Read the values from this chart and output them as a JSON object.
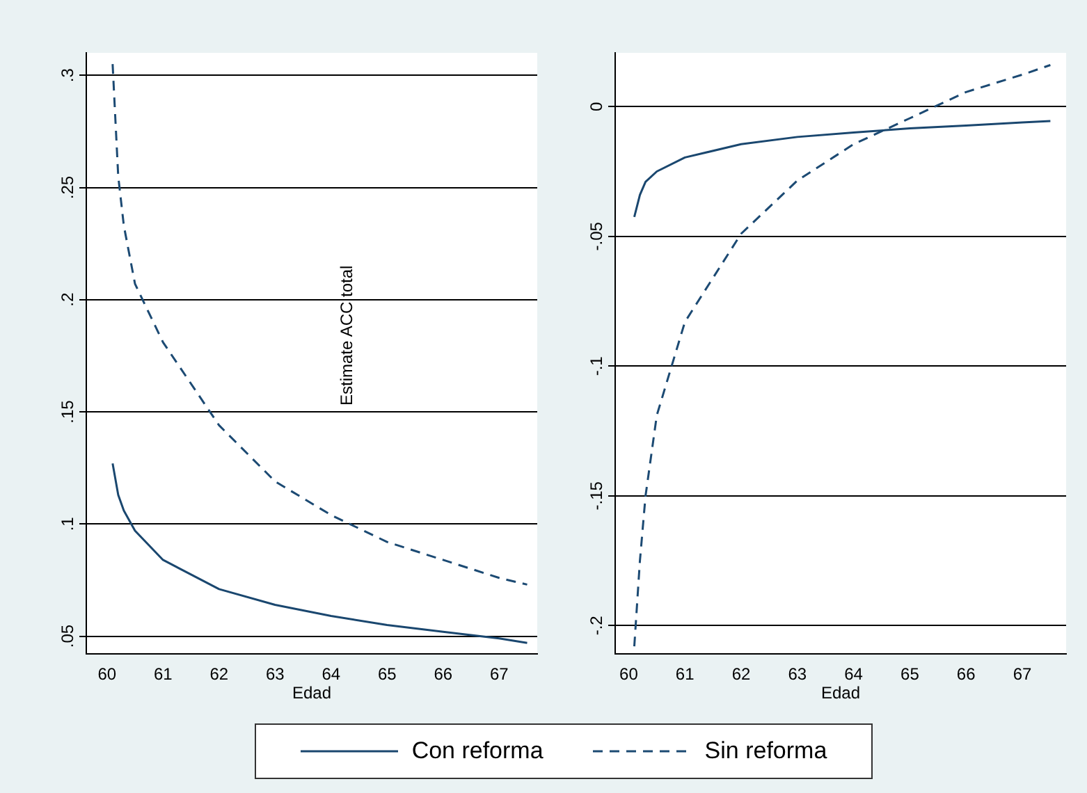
{
  "chart_data": [
    {
      "type": "line",
      "xlabel": "Edad",
      "x": [
        60.1,
        60.2,
        60.3,
        60.5,
        61,
        62,
        63,
        64,
        65,
        66,
        67,
        67.5
      ],
      "series": [
        {
          "name": "Con reforma",
          "color": "#1a476f",
          "line_style": "solid",
          "values": [
            0.127,
            0.113,
            0.106,
            0.097,
            0.084,
            0.071,
            0.064,
            0.059,
            0.055,
            0.052,
            0.049,
            0.047
          ]
        },
        {
          "name": "Sin reforma",
          "color": "#1c4a73",
          "line_style": "dashed",
          "values": [
            0.305,
            0.255,
            0.233,
            0.207,
            0.181,
            0.144,
            0.119,
            0.104,
            0.092,
            0.084,
            0.076,
            0.073
          ]
        }
      ],
      "xlim": [
        59.63,
        67.68
      ],
      "xticks": [
        60,
        61,
        62,
        63,
        64,
        65,
        66,
        67
      ],
      "ylim": [
        0.042,
        0.31
      ],
      "yticks": [
        {
          "value": 0.05,
          "label": ".05"
        },
        {
          "value": 0.1,
          "label": ".1"
        },
        {
          "value": 0.15,
          "label": ".15"
        },
        {
          "value": 0.2,
          "label": ".2"
        },
        {
          "value": 0.25,
          "label": ".25"
        },
        {
          "value": 0.3,
          "label": ".3"
        }
      ],
      "grid": "y",
      "legend": "bottom",
      "marker": "none",
      "annotations": [
        "Estimate ACC total"
      ]
    },
    {
      "type": "line",
      "xlabel": "Edad",
      "x": [
        60.1,
        60.2,
        60.3,
        60.5,
        61,
        62,
        63,
        64,
        65,
        66,
        67,
        67.5
      ],
      "series": [
        {
          "color": "#1a476f",
          "line_style": "solid",
          "values": [
            -0.0425,
            -0.034,
            -0.029,
            -0.025,
            -0.0196,
            -0.0145,
            -0.0117,
            -0.01,
            -0.0084,
            -0.0073,
            -0.0061,
            -0.0056
          ]
        },
        {
          "color": "#1c4a73",
          "line_style": "dashed",
          "values": [
            -0.208,
            -0.175,
            -0.15,
            -0.119,
            -0.083,
            -0.049,
            -0.0285,
            -0.0145,
            -0.0045,
            0.0056,
            0.0123,
            0.016
          ]
        }
      ],
      "xlim": [
        59.76,
        67.78
      ],
      "xticks": [
        60,
        61,
        62,
        63,
        64,
        65,
        66,
        67
      ],
      "ylim": [
        -0.211,
        0.0207
      ],
      "yticks": [
        {
          "value": -0.2,
          "label": "-.2"
        },
        {
          "value": -0.15,
          "label": "-.15"
        },
        {
          "value": -0.1,
          "label": "-.1"
        },
        {
          "value": -0.05,
          "label": "-.05"
        },
        {
          "value": 0,
          "label": "0"
        }
      ],
      "grid": "y",
      "marker": "none"
    }
  ]
}
